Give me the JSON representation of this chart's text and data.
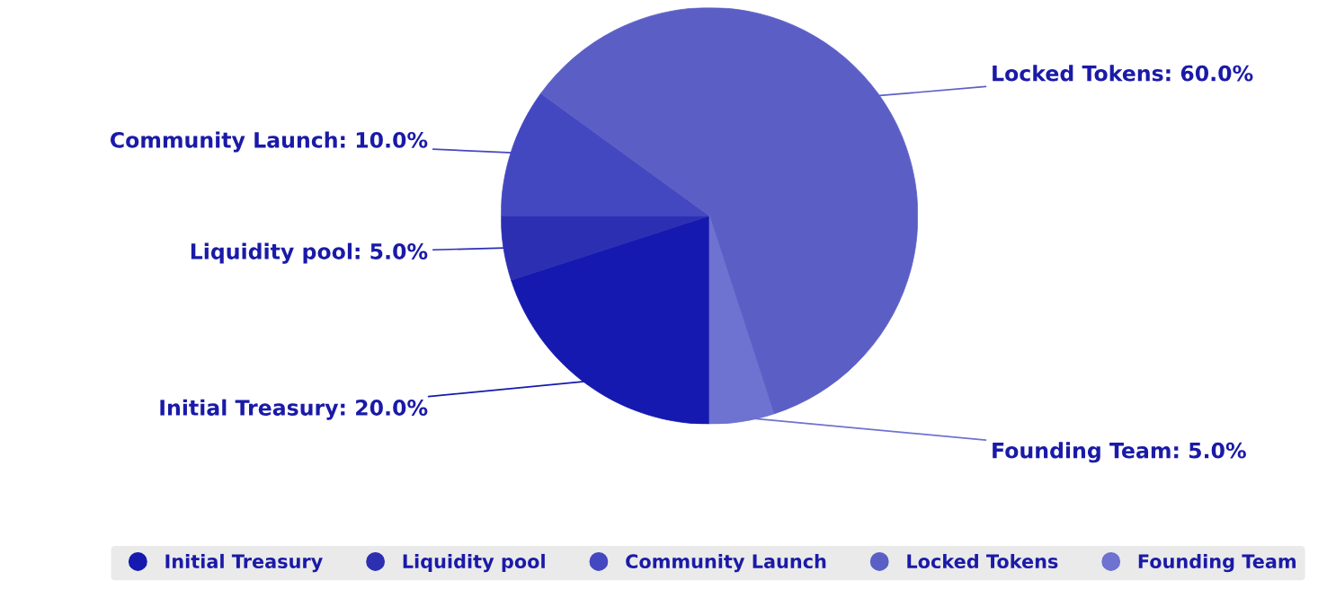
{
  "chart_data": {
    "type": "pie",
    "categories": [
      "Initial Treasury",
      "Liquidity pool",
      "Community Launch",
      "Locked Tokens",
      "Founding Team"
    ],
    "values": [
      20,
      5,
      10,
      60,
      5
    ],
    "value_labels": [
      "Initial Treasury: 20.0%",
      "Liquidity pool: 5.0%",
      "Community Launch: 10.0%",
      "Locked Tokens: 60.0%",
      "Founding Team: 5.0%"
    ],
    "colors": [
      "#1519b0",
      "#2d2fb3",
      "#4448c0",
      "#5b5fc5",
      "#6e72d0"
    ],
    "legend": "bottom"
  }
}
